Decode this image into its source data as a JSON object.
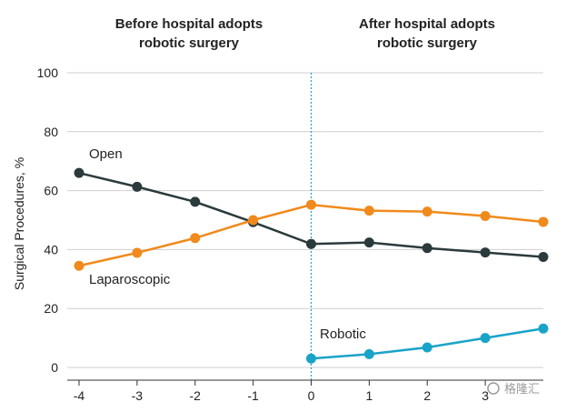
{
  "chart_data": {
    "type": "line",
    "headers": {
      "before": [
        "Before hospital adopts",
        "robotic surgery"
      ],
      "after": [
        "After hospital adopts",
        "robotic surgery"
      ]
    },
    "ylabel": "Surgical Procedures, %",
    "xlabel": "",
    "ylim": [
      0,
      100
    ],
    "xlim": [
      -4,
      4
    ],
    "yticks": [
      0,
      20,
      40,
      60,
      80,
      100
    ],
    "xticks": [
      -4,
      -3,
      -2,
      -1,
      0,
      1,
      2,
      3
    ],
    "grid": "horizontal",
    "reference_line_x": 0,
    "series": [
      {
        "name": "Open",
        "color": "#2b3a3c",
        "x": [
          -4,
          -3,
          -2,
          -1,
          0,
          1,
          2,
          3,
          4
        ],
        "values": [
          66,
          61.3,
          56.2,
          49.3,
          41.9,
          42.4,
          40.5,
          39,
          37.5
        ]
      },
      {
        "name": "Laparoscopic",
        "color": "#f08a1c",
        "x": [
          -4,
          -3,
          -2,
          -1,
          0,
          1,
          2,
          3,
          4
        ],
        "values": [
          34.5,
          38.9,
          43.9,
          50,
          55.2,
          53.2,
          52.9,
          51.4,
          49.4
        ]
      },
      {
        "name": "Robotic",
        "color": "#1aa3c9",
        "x": [
          0,
          1,
          2,
          3,
          4
        ],
        "values": [
          3,
          4.5,
          6.8,
          10,
          13.2
        ]
      }
    ]
  },
  "watermark": "格隆汇"
}
